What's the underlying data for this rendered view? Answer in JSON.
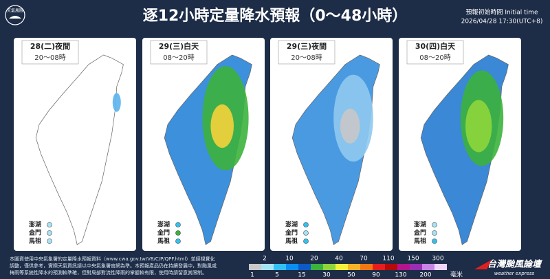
{
  "header": {
    "logo": "天氣風險",
    "title": "逐12小時定量降水預報（0～48小時）",
    "init_label": "預報初始時間 Initial time",
    "init_time": "2026/04/28 17:30(UTC+8)"
  },
  "panels": [
    {
      "label": "28(二)夜間",
      "time": "20～08時"
    },
    {
      "label": "29(三)白天",
      "time": "08～20時"
    },
    {
      "label": "29(三)夜間",
      "time": "20～08時"
    },
    {
      "label": "30(四)白天",
      "time": "08～20時"
    }
  ],
  "islands": [
    "澎湖",
    "金門",
    "馬祖"
  ],
  "footer": {
    "notes": [
      "本圖資使用中央氣象署的定量降水預報資料（www.cwa.gov.tw/V8/C/P/QPF.html）並經視覺化",
      "調整，僅供參考，實際天氣資訊請以中央氣象署官網為準。本預報產品仍在持續發展中，對颱風或",
      "梅雨等系統性降水的預測較準確，但對局部對流性降雨的掌握較有限，使用時請留意其限制。"
    ],
    "scale": {
      "thresholds": [
        1,
        2,
        5,
        10,
        15,
        20,
        30,
        40,
        50,
        70,
        90,
        110,
        130,
        150,
        200,
        300
      ],
      "colors": [
        "#c8c8c8",
        "#a6e4f5",
        "#33c1f2",
        "#0a8ff0",
        "#0b5ac8",
        "#3cb33c",
        "#8fd63b",
        "#f5f03a",
        "#f5b428",
        "#f07814",
        "#e61e1e",
        "#b40a0a",
        "#b4148c",
        "#9b2eb4",
        "#c883e6",
        "#f0d7fa"
      ],
      "unit": "毫米"
    },
    "brand": "台灣颱風論壇",
    "brand_sub": "weather express"
  }
}
